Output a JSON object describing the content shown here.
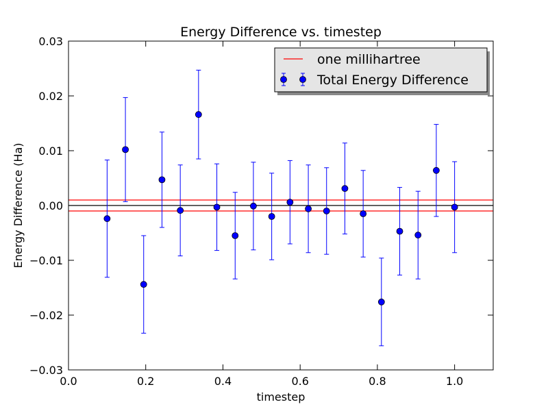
{
  "chart_data": {
    "type": "scatter",
    "title": "Energy Difference vs. timestep",
    "xlabel": "timestep",
    "ylabel": "Energy Difference (Ha)",
    "xlim": [
      0.0,
      1.1
    ],
    "ylim": [
      -0.03,
      0.03
    ],
    "x_ticks": [
      "0.0",
      "0.2",
      "0.4",
      "0.6",
      "0.8",
      "1.0"
    ],
    "y_ticks": [
      "−0.03",
      "−0.02",
      "−0.01",
      "0.00",
      "0.01",
      "0.02",
      "0.03"
    ],
    "grid": false,
    "legend_position": "top-right",
    "reference_lines": [
      {
        "name": "one millihartree",
        "y": 0.001,
        "color": "#ff0000",
        "legend": true
      },
      {
        "name": "one millihartree",
        "y": -0.001,
        "color": "#ff0000",
        "legend": false
      },
      {
        "name": "zero",
        "y": 0.0,
        "color": "#000000",
        "legend": false
      }
    ],
    "series": [
      {
        "name": "Total Energy Difference",
        "color": "#0000ff",
        "points": [
          {
            "x": 0.1,
            "y": -0.0024,
            "err": 0.0107
          },
          {
            "x": 0.1474,
            "y": 0.0102,
            "err": 0.0095
          },
          {
            "x": 0.1947,
            "y": -0.0144,
            "err": 0.0089
          },
          {
            "x": 0.2421,
            "y": 0.0047,
            "err": 0.0087
          },
          {
            "x": 0.2895,
            "y": -0.0009,
            "err": 0.0083
          },
          {
            "x": 0.3368,
            "y": 0.0166,
            "err": 0.0081
          },
          {
            "x": 0.3842,
            "y": -0.0003,
            "err": 0.0079
          },
          {
            "x": 0.4316,
            "y": -0.0055,
            "err": 0.0079
          },
          {
            "x": 0.4789,
            "y": -0.0001,
            "err": 0.008
          },
          {
            "x": 0.5263,
            "y": -0.002,
            "err": 0.0079
          },
          {
            "x": 0.5737,
            "y": 0.0006,
            "err": 0.0076
          },
          {
            "x": 0.6211,
            "y": -0.0006,
            "err": 0.008
          },
          {
            "x": 0.6684,
            "y": -0.001,
            "err": 0.0079
          },
          {
            "x": 0.7158,
            "y": 0.0031,
            "err": 0.0083
          },
          {
            "x": 0.7632,
            "y": -0.0015,
            "err": 0.0079
          },
          {
            "x": 0.8105,
            "y": -0.0176,
            "err": 0.008
          },
          {
            "x": 0.8579,
            "y": -0.0047,
            "err": 0.008
          },
          {
            "x": 0.9053,
            "y": -0.0054,
            "err": 0.008
          },
          {
            "x": 0.9526,
            "y": 0.0064,
            "err": 0.0084
          },
          {
            "x": 1.0,
            "y": -0.0003,
            "err": 0.0083
          }
        ]
      }
    ],
    "legend": [
      {
        "label": "one millihartree",
        "marker": "line",
        "color": "#ff0000"
      },
      {
        "label": "Total Energy Difference",
        "marker": "errorbar-point",
        "color": "#0000ff"
      }
    ]
  }
}
